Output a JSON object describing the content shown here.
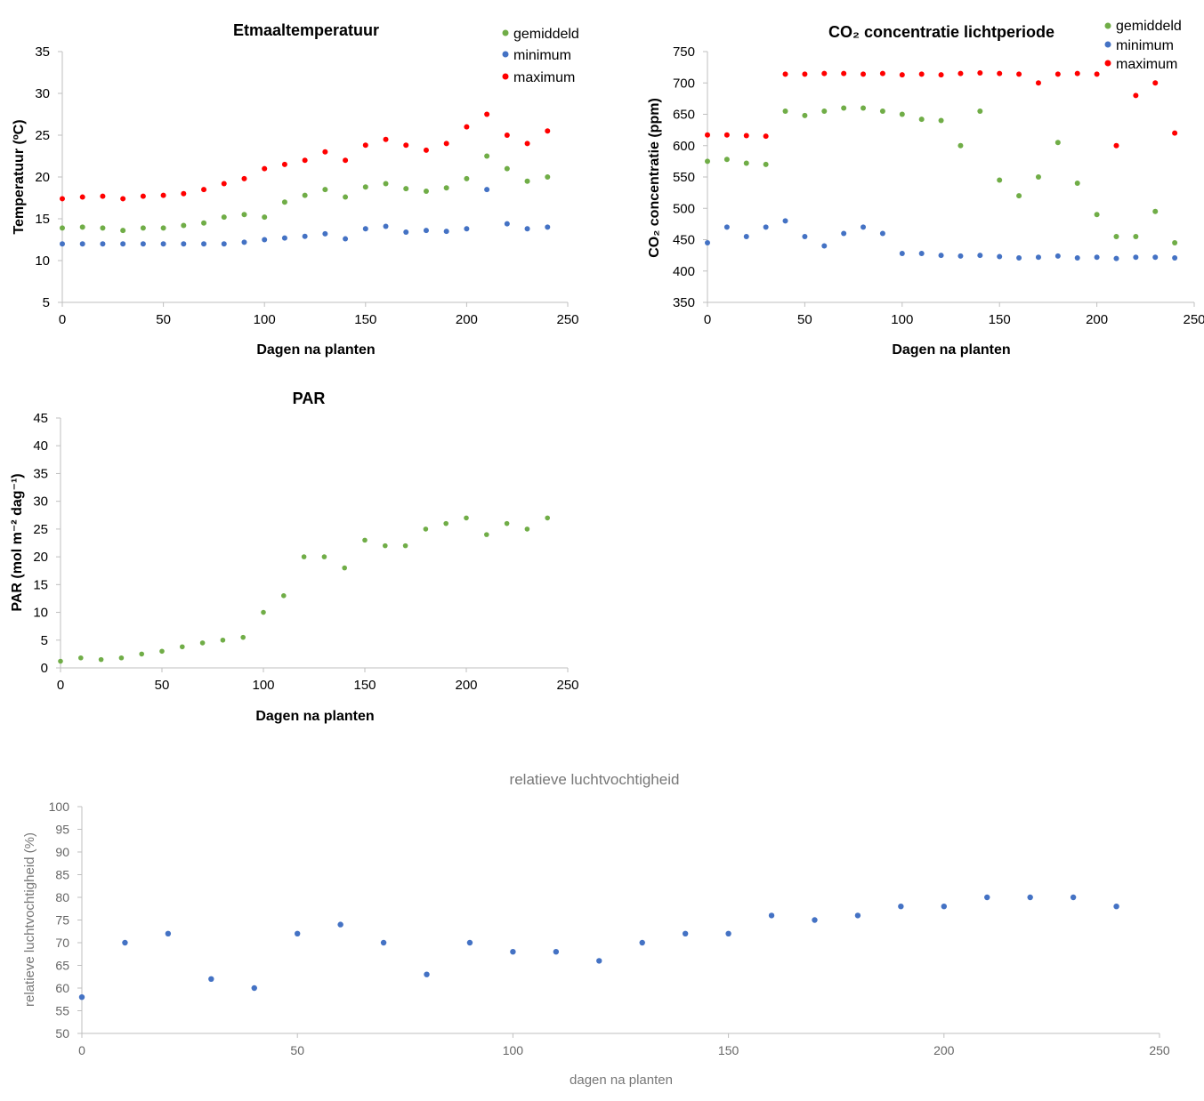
{
  "colors": {
    "green": "#70ad47",
    "blue": "#4472c4",
    "red": "#ff0000",
    "rh": "#4472c4"
  },
  "chart_data": [
    {
      "id": "temp",
      "type": "scatter",
      "title": "Etmaaltemperatuur",
      "xlabel": "Dagen na planten",
      "ylabel": "Temperatuur (ºC)",
      "xlim": [
        0,
        250
      ],
      "ylim": [
        5,
        35
      ],
      "xticks": [
        0,
        50,
        100,
        150,
        200,
        250
      ],
      "yticks": [
        5,
        10,
        15,
        20,
        25,
        30,
        35
      ],
      "legend": "top-right",
      "series": [
        {
          "name": "gemiddeld",
          "color": "green",
          "x": [
            0,
            10,
            20,
            30,
            40,
            50,
            60,
            70,
            80,
            90,
            100,
            110,
            120,
            130,
            140,
            150,
            160,
            170,
            180,
            190,
            200,
            210,
            220,
            230,
            240
          ],
          "y": [
            13.9,
            14.0,
            13.9,
            13.6,
            13.9,
            13.9,
            14.2,
            14.5,
            15.2,
            15.5,
            15.2,
            17.0,
            17.8,
            18.5,
            17.6,
            18.8,
            19.2,
            18.6,
            18.3,
            18.7,
            19.8,
            22.5,
            21.0,
            19.5,
            20.0
          ]
        },
        {
          "name": "minimum",
          "color": "blue",
          "x": [
            0,
            10,
            20,
            30,
            40,
            50,
            60,
            70,
            80,
            90,
            100,
            110,
            120,
            130,
            140,
            150,
            160,
            170,
            180,
            190,
            200,
            210,
            220,
            230,
            240
          ],
          "y": [
            12.0,
            12.0,
            12.0,
            12.0,
            12.0,
            12.0,
            12.0,
            12.0,
            12.0,
            12.2,
            12.5,
            12.7,
            12.9,
            13.2,
            12.6,
            13.8,
            14.1,
            13.4,
            13.6,
            13.5,
            13.8,
            18.5,
            14.4,
            13.8,
            14.0
          ]
        },
        {
          "name": "maximum",
          "color": "red",
          "x": [
            0,
            10,
            20,
            30,
            40,
            50,
            60,
            70,
            80,
            90,
            100,
            110,
            120,
            130,
            140,
            150,
            160,
            170,
            180,
            190,
            200,
            210,
            220,
            230,
            240
          ],
          "y": [
            17.4,
            17.6,
            17.7,
            17.4,
            17.7,
            17.8,
            18.0,
            18.5,
            19.2,
            19.8,
            21.0,
            21.5,
            22.0,
            23.0,
            22.0,
            23.8,
            24.5,
            23.8,
            23.2,
            24.0,
            26.0,
            27.5,
            25.0,
            24.0,
            25.5
          ]
        }
      ]
    },
    {
      "id": "co2",
      "type": "scatter",
      "title": "CO₂ concentratie lichtperiode",
      "xlabel": "Dagen na planten",
      "ylabel": "CO₂ concentratie (ppm)",
      "xlim": [
        0,
        250
      ],
      "ylim": [
        350,
        750
      ],
      "xticks": [
        0,
        50,
        100,
        150,
        200,
        250
      ],
      "yticks": [
        350,
        400,
        450,
        500,
        550,
        600,
        650,
        700,
        750
      ],
      "legend": "top-right",
      "series": [
        {
          "name": "gemiddeld",
          "color": "green",
          "x": [
            0,
            10,
            20,
            30,
            40,
            50,
            60,
            70,
            80,
            90,
            100,
            110,
            120,
            130,
            140,
            150,
            160,
            170,
            180,
            190,
            200,
            210,
            220,
            230,
            240
          ],
          "y": [
            575,
            578,
            572,
            570,
            655,
            648,
            655,
            660,
            660,
            655,
            650,
            642,
            640,
            600,
            655,
            545,
            520,
            550,
            605,
            540,
            490,
            455,
            455,
            495,
            445
          ]
        },
        {
          "name": "minimum",
          "color": "blue",
          "x": [
            0,
            10,
            20,
            30,
            40,
            50,
            60,
            70,
            80,
            90,
            100,
            110,
            120,
            130,
            140,
            150,
            160,
            170,
            180,
            190,
            200,
            210,
            220,
            230,
            240
          ],
          "y": [
            445,
            470,
            455,
            470,
            480,
            455,
            440,
            460,
            470,
            460,
            428,
            428,
            425,
            424,
            425,
            423,
            421,
            422,
            424,
            421,
            422,
            420,
            422,
            422,
            421
          ]
        },
        {
          "name": "maximum",
          "color": "red",
          "x": [
            0,
            10,
            20,
            30,
            40,
            50,
            60,
            70,
            80,
            90,
            100,
            110,
            120,
            130,
            140,
            150,
            160,
            170,
            180,
            190,
            200,
            210,
            220,
            230,
            240
          ],
          "y": [
            617,
            617,
            616,
            615,
            714,
            714,
            715,
            715,
            714,
            715,
            713,
            714,
            713,
            715,
            716,
            715,
            714,
            700,
            714,
            715,
            714,
            600,
            680,
            700,
            620
          ]
        }
      ]
    },
    {
      "id": "par",
      "type": "scatter",
      "title": "PAR",
      "xlabel": "Dagen na planten",
      "ylabel": "PAR (mol m⁻² dag⁻¹)",
      "xlim": [
        0,
        250
      ],
      "ylim": [
        0,
        45
      ],
      "xticks": [
        0,
        50,
        100,
        150,
        200,
        250
      ],
      "yticks": [
        0,
        5,
        10,
        15,
        20,
        25,
        30,
        35,
        40,
        45
      ],
      "series": [
        {
          "name": "",
          "color": "green",
          "x": [
            0,
            10,
            20,
            30,
            40,
            50,
            60,
            70,
            80,
            90,
            100,
            110,
            120,
            130,
            140,
            150,
            160,
            170,
            180,
            190,
            200,
            210,
            220,
            230,
            240
          ],
          "y": [
            1.2,
            1.8,
            1.5,
            1.8,
            2.5,
            3.0,
            3.8,
            4.5,
            5.0,
            5.5,
            10.0,
            13.0,
            20.0,
            20.0,
            18.0,
            23.0,
            22.0,
            22.0,
            25.0,
            26.0,
            27.0,
            24.0,
            26.0,
            25.0,
            27.0
          ]
        }
      ]
    },
    {
      "id": "rh",
      "type": "scatter",
      "title": "relatieve luchtvochtigheid",
      "xlabel": "dagen na planten",
      "ylabel": "relatieve luchtvochtigheid (%)",
      "xlim": [
        0,
        250
      ],
      "ylim": [
        50,
        100
      ],
      "xticks": [
        0,
        50,
        100,
        150,
        200,
        250
      ],
      "yticks": [
        50,
        55,
        60,
        65,
        70,
        75,
        80,
        85,
        90,
        95,
        100
      ],
      "series": [
        {
          "name": "",
          "color": "rh",
          "x": [
            0,
            10,
            20,
            30,
            40,
            50,
            60,
            70,
            80,
            90,
            100,
            110,
            120,
            130,
            140,
            150,
            160,
            170,
            180,
            190,
            200,
            210,
            220,
            230,
            240
          ],
          "y": [
            58,
            70,
            72,
            62,
            60,
            72,
            74,
            70,
            63,
            70,
            68,
            68,
            66,
            70,
            72,
            72,
            76,
            75,
            76,
            78,
            78,
            80,
            80,
            80,
            78
          ]
        }
      ]
    }
  ]
}
